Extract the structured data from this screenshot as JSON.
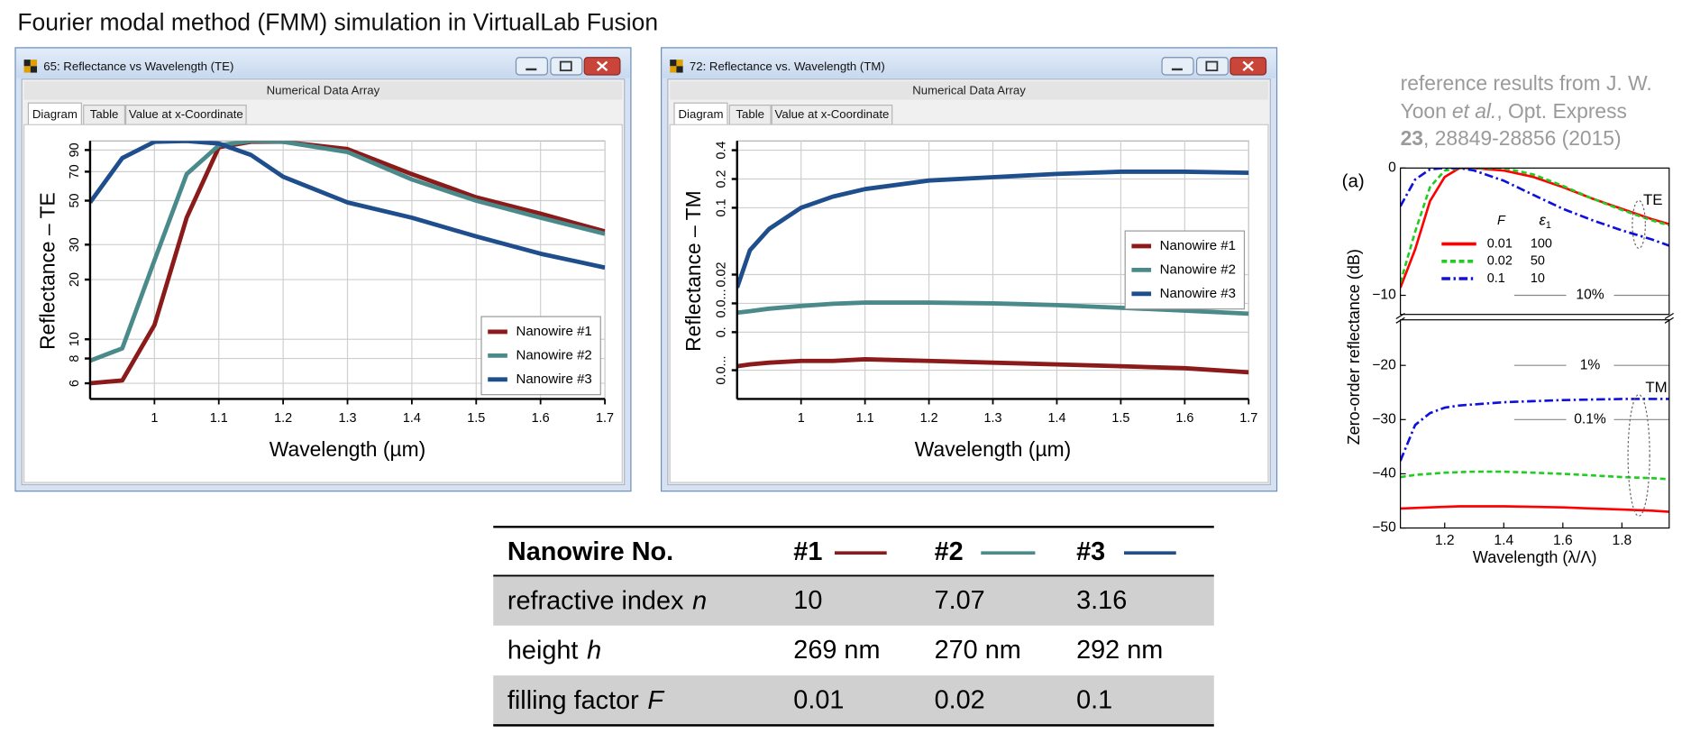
{
  "title": "Fourier modal method (FMM) simulation in VirtualLab Fusion",
  "windows": [
    {
      "title": "65: Reflectance vs Wavelength (TE)",
      "panel_title": "Numerical Data Array",
      "tabs": [
        "Diagram",
        "Table",
        "Value at x-Coordinate"
      ]
    },
    {
      "title": "72: Reflectance vs. Wavelength (TM)",
      "panel_title": "Numerical Data Array",
      "tabs": [
        "Diagram",
        "Table",
        "Value at x-Coordinate"
      ]
    }
  ],
  "reference": {
    "line1": "reference results from J. W.",
    "author": "Yoon",
    "etal": "et al.",
    "journal": ", Opt. Express",
    "volume": "23",
    "pages": ", 28849-28856 (2015)"
  },
  "chart_data": [
    {
      "type": "line",
      "yscale": "log",
      "ylabel": "Reflectance – TE",
      "xlabel": "Wavelength (µm)",
      "xlim": [
        0.9,
        1.7
      ],
      "xticks": [
        1,
        1.1,
        1.2,
        1.3,
        1.4,
        1.5,
        1.6,
        1.7
      ],
      "ylim": [
        5,
        100
      ],
      "yticks": [
        6,
        8,
        10,
        20,
        30,
        50,
        70,
        90
      ],
      "grid": true,
      "legend": "lower right",
      "x": [
        0.9,
        0.95,
        1.0,
        1.05,
        1.1,
        1.15,
        1.2,
        1.3,
        1.4,
        1.5,
        1.6,
        1.7
      ],
      "series": [
        {
          "name": "Nanowire #1",
          "color": "#8b1a1a",
          "values": [
            6,
            6.2,
            11.8,
            41,
            93,
            99,
            99,
            91,
            68,
            52,
            43,
            35
          ]
        },
        {
          "name": "Nanowire #2",
          "color": "#4a8a8a",
          "values": [
            7.8,
            9,
            25,
            68,
            95,
            100,
            99,
            88,
            64,
            50,
            41,
            34
          ]
        },
        {
          "name": "Nanowire #3",
          "color": "#1f4e8c",
          "values": [
            49,
            82,
            99,
            100,
            97,
            85,
            66,
            49,
            41,
            33,
            27,
            23
          ]
        }
      ]
    },
    {
      "type": "line",
      "yscale": "log",
      "ylabel": "Reflectance – TM",
      "xlabel": "Wavelength (µm)",
      "xlim": [
        0.9,
        1.7
      ],
      "xticks": [
        1,
        1.1,
        1.2,
        1.3,
        1.4,
        1.5,
        1.6,
        1.7
      ],
      "ylim": [
        0.001,
        0.5
      ],
      "yticks": [
        {
          "value": 0.002,
          "label": "0.0..."
        },
        {
          "value": 0.005,
          "label": "0."
        },
        {
          "value": 0.01,
          "label": "0.0..."
        },
        0.02,
        0.1,
        0.2,
        0.4
      ],
      "grid": true,
      "legend": "center right",
      "x": [
        0.9,
        0.92,
        0.95,
        1.0,
        1.05,
        1.1,
        1.2,
        1.3,
        1.4,
        1.5,
        1.6,
        1.7
      ],
      "series": [
        {
          "name": "Nanowire #1",
          "color": "#8b1a1a",
          "values": [
            0.0022,
            0.0023,
            0.0024,
            0.0025,
            0.0025,
            0.0026,
            0.0025,
            0.0024,
            0.0023,
            0.0022,
            0.0021,
            0.0019
          ]
        },
        {
          "name": "Nanowire #2",
          "color": "#4a8a8a",
          "values": [
            0.008,
            0.0083,
            0.0088,
            0.0094,
            0.0099,
            0.0102,
            0.0102,
            0.01,
            0.0096,
            0.009,
            0.0084,
            0.0078
          ]
        },
        {
          "name": "Nanowire #3",
          "color": "#1f4e8c",
          "values": [
            0.0146,
            0.036,
            0.06,
            0.1,
            0.131,
            0.157,
            0.193,
            0.209,
            0.226,
            0.238,
            0.238,
            0.232
          ]
        }
      ]
    },
    {
      "type": "line",
      "panel_label": "(a)",
      "annotation": "TE",
      "xlim": [
        1.05,
        1.96
      ],
      "ylim": [
        -11.5,
        0
      ],
      "yticks": [
        0,
        {
          "value": -10,
          "label": "−10"
        }
      ],
      "hlines": [
        {
          "value": -10,
          "label": "10%"
        }
      ],
      "legend": "upper left",
      "legend_columns": [
        "F",
        "ε"
      ],
      "legend_subscript": "1",
      "x": [
        1.05,
        1.1,
        1.15,
        1.2,
        1.25,
        1.3,
        1.4,
        1.5,
        1.6,
        1.7,
        1.8,
        1.9,
        1.96
      ],
      "series": [
        {
          "name": "0.01",
          "epsilon": 100,
          "color": "#ff0000",
          "dash": "solid",
          "values": [
            -9.4,
            -6.4,
            -2.6,
            -0.7,
            0,
            0,
            -0.2,
            -0.7,
            -1.5,
            -2.4,
            -3.2,
            -4.0,
            -4.4
          ]
        },
        {
          "name": "0.02",
          "epsilon": 50,
          "color": "#22cc22",
          "dash": "dashed",
          "values": [
            -9.0,
            -5,
            -1.5,
            -0.2,
            0,
            0,
            0,
            -0.5,
            -1.4,
            -2.4,
            -3.3,
            -4.1,
            -4.5
          ]
        },
        {
          "name": "0.1",
          "epsilon": 10,
          "color": "#1010dd",
          "dash": "dashdot",
          "values": [
            -3.0,
            -0.9,
            -0.1,
            0,
            0,
            -0.2,
            -1.0,
            -2.1,
            -3.2,
            -4.1,
            -4.9,
            -5.6,
            -6.1
          ]
        }
      ]
    },
    {
      "type": "line",
      "annotation": "TM",
      "ylabel": "Zero-order reflectance (dB)",
      "xlabel": "Wavelength (λ/Λ)",
      "xlim": [
        1.05,
        1.96
      ],
      "xticks": [
        1.2,
        1.4,
        1.6,
        1.8
      ],
      "ylim": [
        -50,
        -11.6
      ],
      "yticks": [
        {
          "value": -20,
          "label": "−20"
        },
        {
          "value": -30,
          "label": "−30"
        },
        {
          "value": -40,
          "label": "−40"
        },
        {
          "value": -50,
          "label": "−50"
        }
      ],
      "hlines": [
        {
          "value": -20,
          "label": "1%"
        },
        {
          "value": -30,
          "label": "0.1%"
        }
      ],
      "x": [
        1.05,
        1.1,
        1.15,
        1.2,
        1.25,
        1.3,
        1.4,
        1.5,
        1.6,
        1.7,
        1.8,
        1.9,
        1.96
      ],
      "series": [
        {
          "color": "#ff0000",
          "dash": "solid",
          "values": [
            -46.4,
            -46.3,
            -46.2,
            -46.1,
            -46.0,
            -46.0,
            -46.0,
            -46.1,
            -46.2,
            -46.4,
            -46.6,
            -46.8,
            -47.0
          ]
        },
        {
          "color": "#22cc22",
          "dash": "dashed",
          "values": [
            -40.6,
            -40.2,
            -40.0,
            -39.8,
            -39.7,
            -39.6,
            -39.6,
            -39.8,
            -40.0,
            -40.3,
            -40.6,
            -40.8,
            -41.0
          ]
        },
        {
          "color": "#1010dd",
          "dash": "dashdot",
          "values": [
            -37.6,
            -31,
            -28.8,
            -27.8,
            -27.4,
            -27.2,
            -26.8,
            -26.6,
            -26.4,
            -26.3,
            -26.2,
            -26.2,
            -26.2
          ]
        }
      ]
    }
  ],
  "table": {
    "header": [
      "Nanowire No.",
      "#1",
      "#2",
      "#3"
    ],
    "colors": [
      "#8b1a1a",
      "#4a8a8a",
      "#1f4e8c"
    ],
    "rows": [
      {
        "label": "refractive index",
        "symbol": "n",
        "values": [
          "10",
          "7.07",
          "3.16"
        ]
      },
      {
        "label": "height",
        "symbol": "h",
        "values": [
          "269 nm",
          "270 nm",
          "292 nm"
        ]
      },
      {
        "label": "filling factor",
        "symbol": "F",
        "values": [
          "0.01",
          "0.02",
          "0.1"
        ]
      }
    ]
  }
}
